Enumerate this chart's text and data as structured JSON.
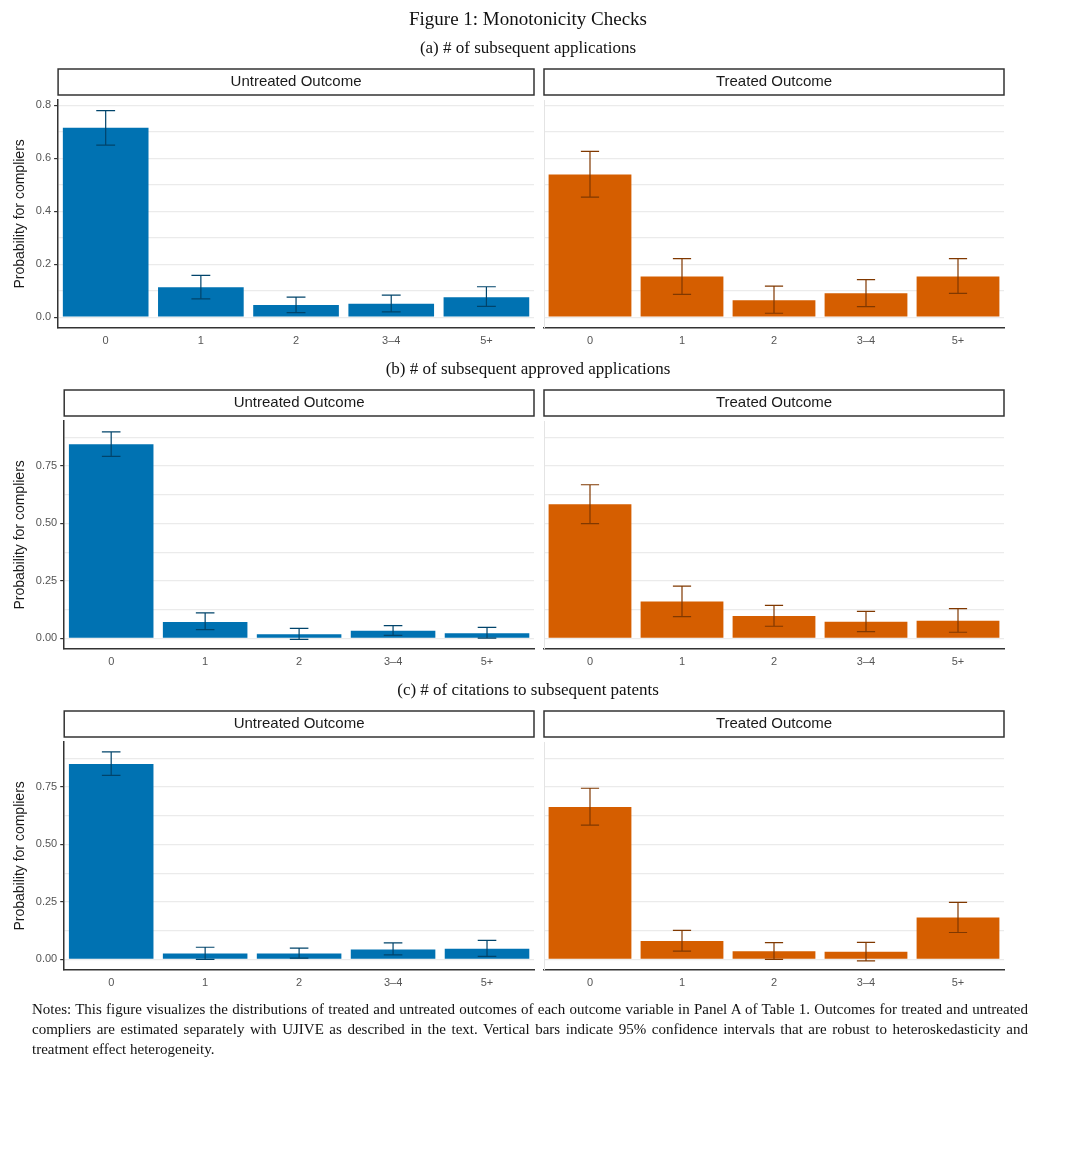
{
  "chart_data": [
    {
      "type": "bar",
      "title": "Untreated Outcome",
      "subtitle": "(a) # of subsequent applications",
      "ylabel": "Probability for compliers",
      "annotations": [
        "Figure 1: Monotonicity Checks"
      ],
      "categories": [
        "0",
        "1",
        "2",
        "3–4",
        "5+"
      ],
      "color": "#0072b2",
      "values": [
        0.715,
        0.113,
        0.046,
        0.051,
        0.075
      ],
      "errors": [
        [
          0.65,
          0.78
        ],
        [
          0.069,
          0.158
        ],
        [
          0.017,
          0.076
        ],
        [
          0.02,
          0.083
        ],
        [
          0.041,
          0.115
        ]
      ],
      "ylim": [
        -0.04,
        0.82
      ],
      "yticks": [
        {
          "value": 0,
          "label": "0.0"
        },
        {
          "value": 0.1,
          "label": null
        },
        0.2,
        {
          "value": 0.3,
          "label": null
        },
        0.4,
        {
          "value": 0.5,
          "label": null
        },
        0.6,
        {
          "value": 0.7,
          "label": null
        },
        0.8
      ],
      "grid": "y"
    },
    {
      "type": "bar",
      "title": "Treated Outcome",
      "categories": [
        "0",
        "1",
        "2",
        "3–4",
        "5+"
      ],
      "color": "#d55e00",
      "values": [
        0.539,
        0.154,
        0.064,
        0.09,
        0.154
      ],
      "errors": [
        [
          0.453,
          0.626
        ],
        [
          0.086,
          0.221
        ],
        [
          0.015,
          0.117
        ],
        [
          0.04,
          0.142
        ],
        [
          0.09,
          0.221
        ]
      ],
      "ylim": [
        -0.04,
        0.82
      ],
      "yticks": [
        {
          "value": 0,
          "label": null
        },
        {
          "value": 0.1,
          "label": null
        },
        {
          "value": 0.2,
          "label": null
        },
        {
          "value": 0.3,
          "label": null
        },
        {
          "value": 0.4,
          "label": null
        },
        {
          "value": 0.5,
          "label": null
        },
        {
          "value": 0.6,
          "label": null
        },
        {
          "value": 0.7,
          "label": null
        },
        {
          "value": 0.8,
          "label": null
        }
      ],
      "grid": "y",
      "tick_labels": "x"
    },
    {
      "type": "bar",
      "title": "Untreated Outcome",
      "subtitle": "(b) # of subsequent approved applications",
      "ylabel": "Probability for compliers",
      "categories": [
        "0",
        "1",
        "2",
        "3–4",
        "5+"
      ],
      "color": "#0072b2",
      "values": [
        0.844,
        0.071,
        0.018,
        0.033,
        0.023
      ],
      "errors": [
        [
          0.791,
          0.898
        ],
        [
          0.038,
          0.111
        ],
        [
          -0.004,
          0.044
        ],
        [
          0.013,
          0.056
        ],
        [
          0.001,
          0.048
        ]
      ],
      "ylim": [
        -0.045,
        0.945
      ],
      "yticks": [
        {
          "value": 0,
          "label": "0.00"
        },
        {
          "value": 0.125,
          "label": null
        },
        {
          "value": 0.25,
          "label": "0.25"
        },
        {
          "value": 0.375,
          "label": null
        },
        {
          "value": 0.5,
          "label": "0.50"
        },
        {
          "value": 0.625,
          "label": null
        },
        {
          "value": 0.75,
          "label": "0.75"
        },
        {
          "value": 0.875,
          "label": null
        }
      ],
      "grid": "y"
    },
    {
      "type": "bar",
      "title": "Treated Outcome",
      "categories": [
        "0",
        "1",
        "2",
        "3–4",
        "5+"
      ],
      "color": "#d55e00",
      "values": [
        0.583,
        0.161,
        0.098,
        0.073,
        0.077
      ],
      "errors": [
        [
          0.499,
          0.668
        ],
        [
          0.095,
          0.227
        ],
        [
          0.053,
          0.144
        ],
        [
          0.03,
          0.118
        ],
        [
          0.027,
          0.13
        ]
      ],
      "ylim": [
        -0.045,
        0.945
      ],
      "yticks": [
        {
          "value": 0,
          "label": null
        },
        {
          "value": 0.125,
          "label": null
        },
        {
          "value": 0.25,
          "label": null
        },
        {
          "value": 0.375,
          "label": null
        },
        {
          "value": 0.5,
          "label": null
        },
        {
          "value": 0.625,
          "label": null
        },
        {
          "value": 0.75,
          "label": null
        },
        {
          "value": 0.875,
          "label": null
        }
      ],
      "grid": "y",
      "tick_labels": "x"
    },
    {
      "type": "bar",
      "title": "Untreated Outcome",
      "subtitle": "(c) # of citations to subsequent patents",
      "ylabel": "Probability for compliers",
      "categories": [
        "0",
        "1",
        "2",
        "3–4",
        "5+"
      ],
      "color": "#0072b2",
      "values": [
        0.849,
        0.026,
        0.026,
        0.043,
        0.047
      ],
      "errors": [
        [
          0.8,
          0.902
        ],
        [
          0.0,
          0.053
        ],
        [
          0.006,
          0.049
        ],
        [
          0.02,
          0.072
        ],
        [
          0.013,
          0.083
        ]
      ],
      "ylim": [
        -0.045,
        0.945
      ],
      "yticks": [
        {
          "value": 0,
          "label": "0.00"
        },
        {
          "value": 0.125,
          "label": null
        },
        {
          "value": 0.25,
          "label": "0.25"
        },
        {
          "value": 0.375,
          "label": null
        },
        {
          "value": 0.5,
          "label": "0.50"
        },
        {
          "value": 0.625,
          "label": null
        },
        {
          "value": 0.75,
          "label": "0.75"
        },
        {
          "value": 0.875,
          "label": null
        }
      ],
      "grid": "y"
    },
    {
      "type": "bar",
      "title": "Treated Outcome",
      "annotations": [
        "Notes: This figure visualizes the distributions of treated and untreated outcomes of each outcome variable in Panel A of Table 1. Outcomes for treated and untreated compliers are estimated separately with UJIVE as described in the text. Vertical bars indicate 95% confidence intervals that are robust to heteroskedasticity and treatment effect heterogeneity."
      ],
      "categories": [
        "0",
        "1",
        "2",
        "3–4",
        "5+"
      ],
      "color": "#d55e00",
      "values": [
        0.663,
        0.08,
        0.036,
        0.033,
        0.182
      ],
      "errors": [
        [
          0.584,
          0.744
        ],
        [
          0.036,
          0.126
        ],
        [
          0.0,
          0.073
        ],
        [
          -0.006,
          0.074
        ],
        [
          0.117,
          0.248
        ]
      ],
      "ylim": [
        -0.045,
        0.945
      ],
      "yticks": [
        {
          "value": 0,
          "label": null
        },
        {
          "value": 0.125,
          "label": null
        },
        {
          "value": 0.25,
          "label": null
        },
        {
          "value": 0.375,
          "label": null
        },
        {
          "value": 0.5,
          "label": null
        },
        {
          "value": 0.625,
          "label": null
        },
        {
          "value": 0.75,
          "label": null
        },
        {
          "value": 0.875,
          "label": null
        }
      ],
      "grid": "y",
      "tick_labels": "x"
    }
  ]
}
